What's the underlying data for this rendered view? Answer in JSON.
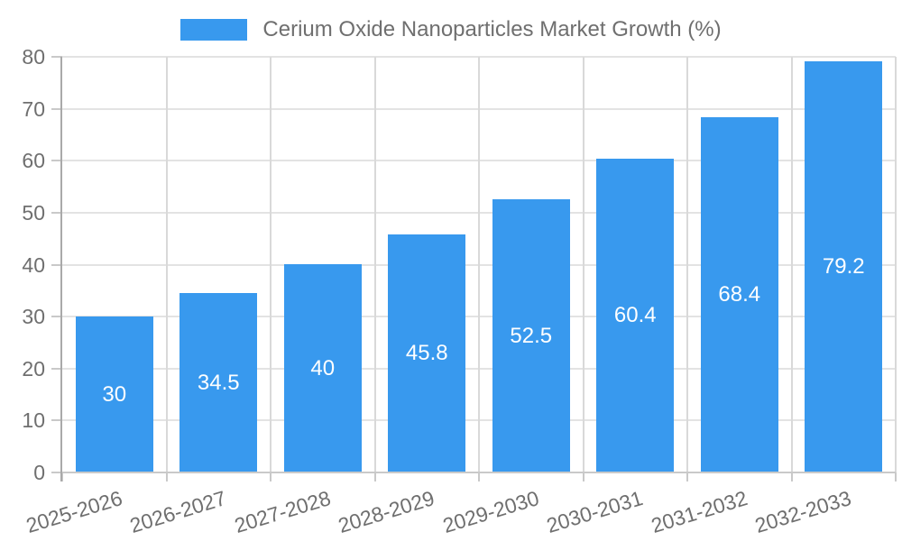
{
  "legend": {
    "label": "Cerium Oxide Nanoparticles Market Growth (%)"
  },
  "chart_data": {
    "type": "bar",
    "title": "Cerium Oxide Nanoparticles Market Growth (%)",
    "categories": [
      "2025-2026",
      "2026-2027",
      "2027-2028",
      "2028-2029",
      "2029-2030",
      "2030-2031",
      "2031-2032",
      "2032-2033"
    ],
    "values": [
      30,
      34.5,
      40,
      45.8,
      52.5,
      60.4,
      68.4,
      79.2
    ],
    "value_labels": [
      "30",
      "34.5",
      "40",
      "45.8",
      "52.5",
      "60.4",
      "68.4",
      "79.2"
    ],
    "xlabel": "",
    "ylabel": "",
    "ylim": [
      0,
      80
    ],
    "ytick_step": 10,
    "ytick_labels": [
      "0",
      "10",
      "20",
      "30",
      "40",
      "50",
      "60",
      "70",
      "80"
    ],
    "grid": true,
    "legend_position": "top",
    "value_label_position": "inside-center",
    "colors": {
      "bar": "#3899EE",
      "value_label": "#FFFFFF",
      "axis_text": "#6F6F6F",
      "grid_horizontal": "#E3E3E3",
      "grid_vertical": "#D9D9D9",
      "tick": "#C9C9C9",
      "y_axis_border": "#A9A9A9",
      "x_axis_border": "#C9C9C9",
      "background": "#FFFFFF"
    }
  }
}
